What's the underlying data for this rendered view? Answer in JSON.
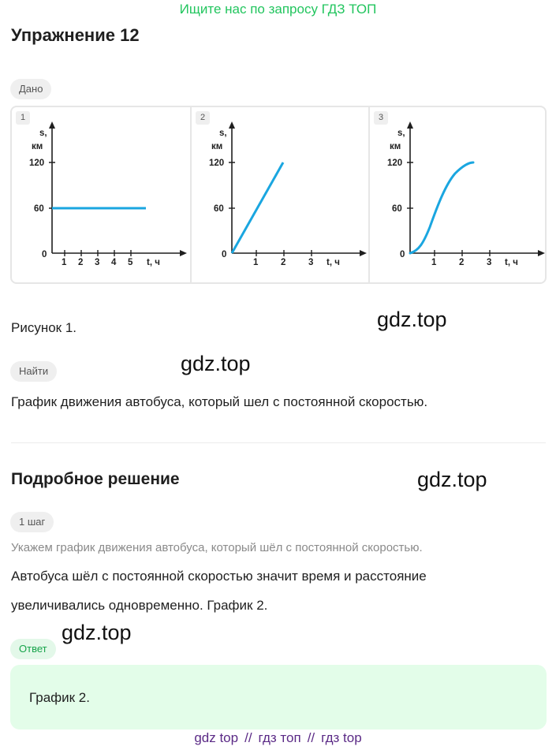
{
  "banner": "Ищите нас по запросу ГДЗ ТОП",
  "title": "Упражнение 12",
  "given_tag": "Дано",
  "figure": {
    "panels": [
      {
        "num": "1",
        "y_label_top": "s,",
        "y_label_unit": "км",
        "y_ticks": [
          "120",
          "60",
          "0"
        ],
        "x_ticks": [
          "1",
          "2",
          "3",
          "4",
          "5"
        ],
        "x_label": "t, ч",
        "curve": "horizontal line at s = 60 from t = 0 to t ≈ 5.6"
      },
      {
        "num": "2",
        "y_label_top": "s,",
        "y_label_unit": "км",
        "y_ticks": [
          "120",
          "60",
          "0"
        ],
        "x_ticks": [
          "1",
          "2",
          "3"
        ],
        "x_label": "t, ч",
        "curve": "straight line from (0,0) to (2,120)"
      },
      {
        "num": "3",
        "y_label_top": "s,",
        "y_label_unit": "км",
        "y_ticks": [
          "120",
          "60",
          "0"
        ],
        "x_ticks": [
          "1",
          "2",
          "3"
        ],
        "x_label": "t, ч",
        "curve": "S-shaped curve from (0,0) to (2.3,120)"
      }
    ],
    "line_color": "#1aa6e0"
  },
  "figure_caption": "Рисунок 1.",
  "find_tag": "Найти",
  "find_text": "График движения автобуса, который шел с постоянной скоростью.",
  "solution_title": "Подробное решение",
  "step_tag": "1 шаг",
  "step_hint": "Укажем график движения автобуса, который шёл с постоянной скоростью.",
  "step_text_1": "Автобуса шёл с постоянной скоростью значит время и расстояние",
  "step_text_2": "увеличивались одновременно. График 2.",
  "answer_tag": "Ответ",
  "answer_text": "График 2.",
  "watermarks": [
    "gdz.top",
    "gdz.top",
    "gdz.top",
    "gdz.top"
  ],
  "footer": {
    "link1": "gdz top",
    "sep1": "//",
    "link2": "гдз топ",
    "sep2": "//",
    "link3": "гдз top"
  },
  "colors": {
    "accent_green": "#22c55e",
    "answer_bg": "#e3fde9",
    "footer": "#5b2a86"
  }
}
